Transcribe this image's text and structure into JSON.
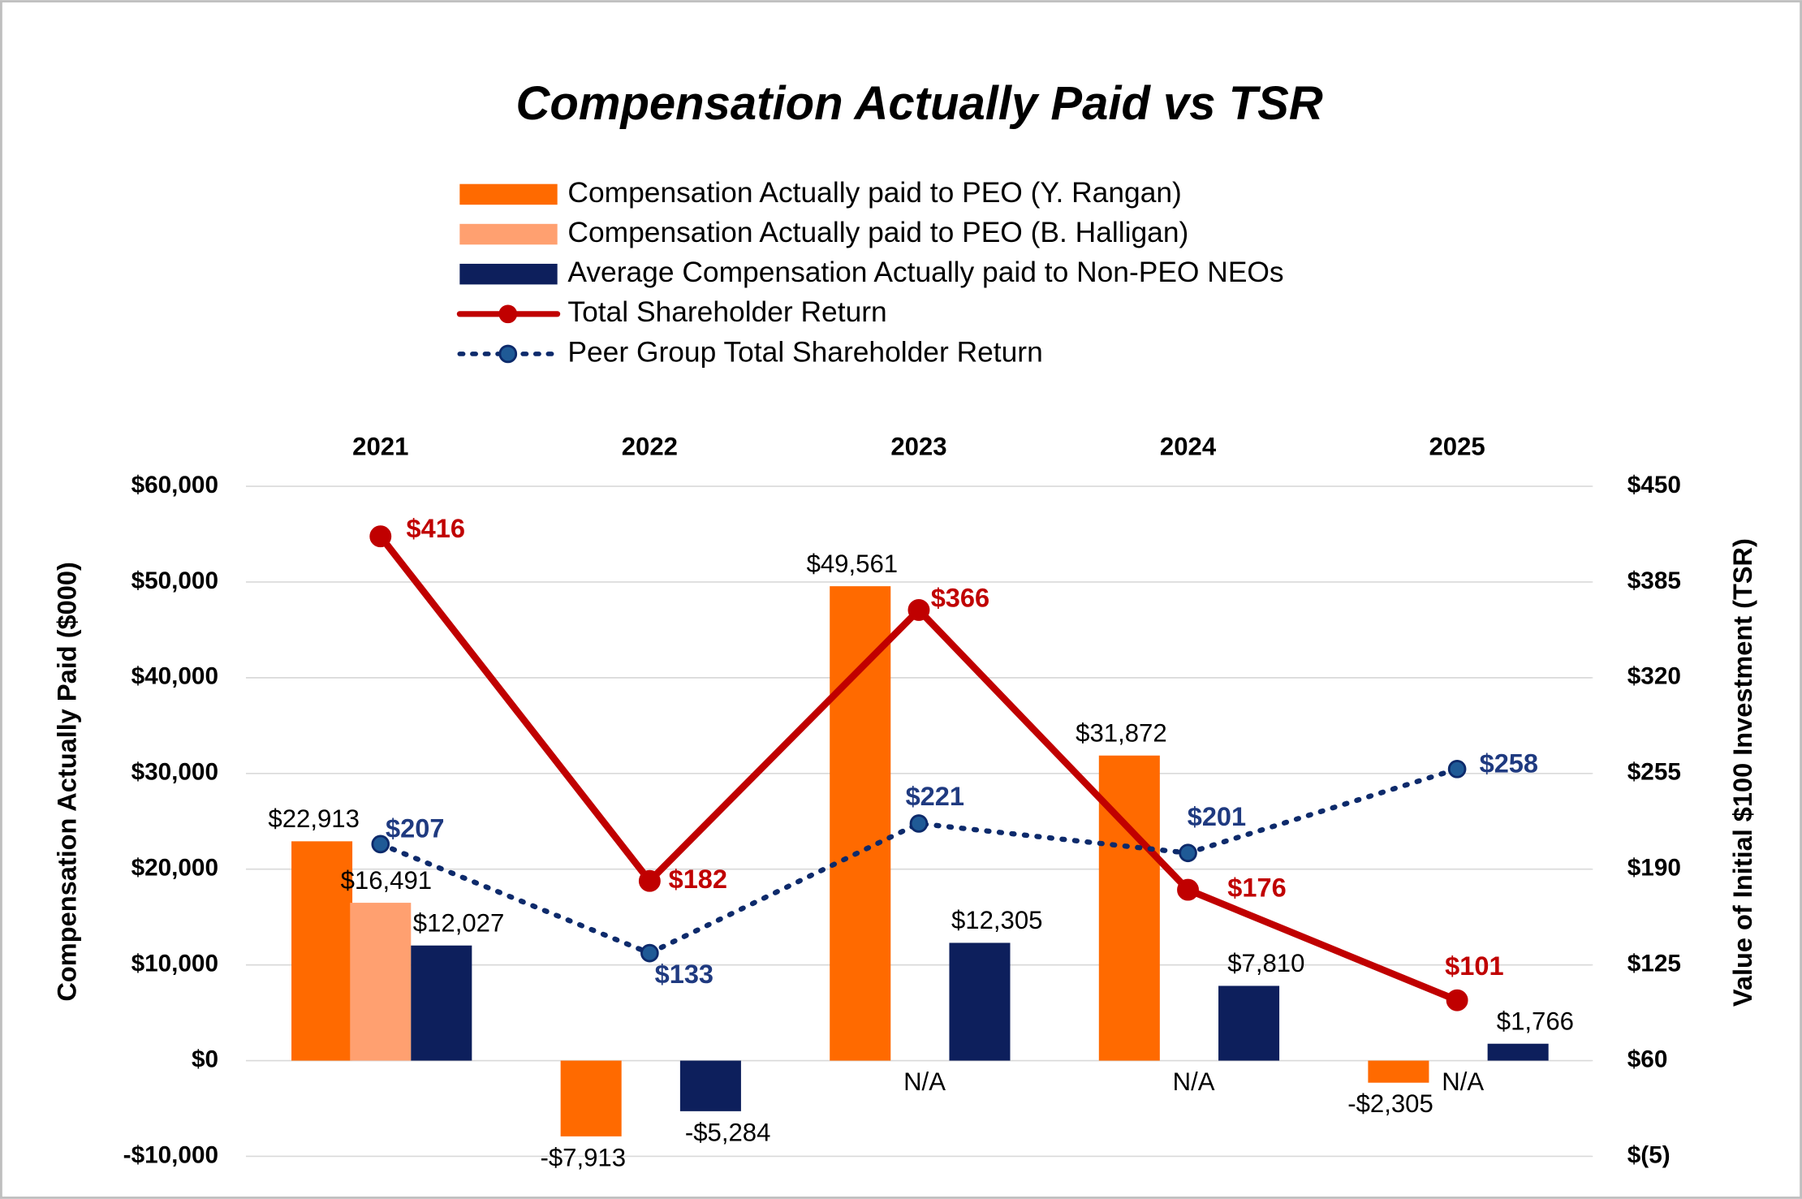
{
  "chart_data": {
    "type": "bar",
    "title": "Compensation Actually Paid vs TSR",
    "y_label": "Compensation Actually Paid ($000)",
    "y2_label": "Value of Initial $100 Investment (TSR)",
    "categories": [
      "2021",
      "2022",
      "2023",
      "2024",
      "2025"
    ],
    "series": [
      {
        "name": "Compensation Actually paid to PEO (Y. Rangan)",
        "type": "bar",
        "color": "#ff6a00",
        "values": [
          22913,
          -7913,
          49561,
          31872,
          -2305
        ],
        "value_labels": [
          "$22,913",
          "-$7,913",
          "$49,561",
          "$31,872",
          "-$2,305"
        ]
      },
      {
        "name": "Compensation Actually paid to PEO (B. Halligan)",
        "type": "bar",
        "color": "#ffa070",
        "values": [
          16491,
          null,
          null,
          null,
          null
        ],
        "value_labels": [
          "$16,491",
          null,
          "N/A",
          "N/A",
          "N/A"
        ]
      },
      {
        "name": "Average Compensation Actually paid to Non-PEO NEOs",
        "type": "bar",
        "color": "#0d1f5c",
        "values": [
          12027,
          -5284,
          12305,
          7810,
          1766
        ],
        "value_labels": [
          "$12,027",
          "-$5,284",
          "$12,305",
          "$7,810",
          "$1,766"
        ]
      },
      {
        "name": "Total Shareholder Return",
        "type": "line",
        "axis": "y2",
        "color": "#c00000",
        "values": [
          416,
          182,
          366,
          176,
          101
        ],
        "value_labels": [
          "$416",
          "$182",
          "$366",
          "$176",
          "$101"
        ]
      },
      {
        "name": "Peer Group Total Shareholder Return",
        "type": "line",
        "axis": "y2",
        "dashed": true,
        "color": "#0d2a6b",
        "values": [
          207,
          133,
          221,
          201,
          258
        ],
        "value_labels": [
          "$207",
          "$133",
          "$221",
          "$201",
          "$258"
        ]
      }
    ],
    "ylim": [
      -10000,
      60000
    ],
    "yticks": [
      {
        "value": -10000,
        "label": "-$10,000"
      },
      {
        "value": 0,
        "label": "$0"
      },
      {
        "value": 10000,
        "label": "$10,000"
      },
      {
        "value": 20000,
        "label": "$20,000"
      },
      {
        "value": 30000,
        "label": "$30,000"
      },
      {
        "value": 40000,
        "label": "$40,000"
      },
      {
        "value": 50000,
        "label": "$50,000"
      },
      {
        "value": 60000,
        "label": "$60,000"
      }
    ],
    "y2lim": [
      -5,
      450
    ],
    "y2ticks": [
      {
        "value": -5,
        "label": "$(5)"
      },
      {
        "value": 60,
        "label": "$60"
      },
      {
        "value": 125,
        "label": "$125"
      },
      {
        "value": 190,
        "label": "$190"
      },
      {
        "value": 255,
        "label": "$255"
      },
      {
        "value": 320,
        "label": "$320"
      },
      {
        "value": 385,
        "label": "$385"
      },
      {
        "value": 450,
        "label": "$450"
      }
    ],
    "grid": true,
    "legend": "top"
  }
}
